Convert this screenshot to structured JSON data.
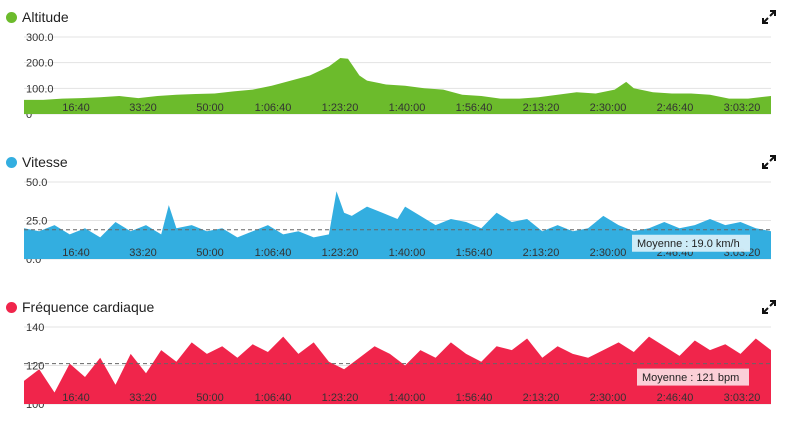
{
  "chart_data": [
    {
      "type": "area",
      "title": "Altitude",
      "color": "#6cbb2c",
      "x_ticks": [
        "16:40",
        "33:20",
        "50:00",
        "1:06:40",
        "1:23:20",
        "1:40:00",
        "1:56:40",
        "2:13:20",
        "2:30:00",
        "2:46:40",
        "3:03:20"
      ],
      "y_ticks": [
        "0",
        "100.0",
        "200.0",
        "300.0"
      ],
      "ylim": [
        0,
        300
      ],
      "xlim_minutes": [
        0,
        196
      ],
      "grid": true,
      "series": [
        {
          "x_minutes": [
            0,
            5,
            10,
            15,
            20,
            25,
            30,
            35,
            40,
            45,
            50,
            55,
            60,
            65,
            70,
            75,
            80,
            83,
            85,
            88,
            90,
            95,
            100,
            105,
            110,
            115,
            120,
            125,
            130,
            135,
            140,
            145,
            150,
            155,
            158,
            160,
            165,
            170,
            175,
            180,
            185,
            190,
            196
          ],
          "values": [
            55,
            55,
            60,
            62,
            65,
            70,
            62,
            70,
            75,
            78,
            80,
            88,
            95,
            110,
            130,
            150,
            185,
            218,
            215,
            150,
            130,
            115,
            110,
            100,
            95,
            75,
            70,
            60,
            60,
            65,
            75,
            85,
            80,
            95,
            125,
            100,
            85,
            80,
            80,
            75,
            60,
            60,
            70
          ]
        }
      ]
    },
    {
      "type": "area",
      "title": "Vitesse",
      "color": "#33aee0",
      "x_ticks": [
        "16:40",
        "33:20",
        "50:00",
        "1:06:40",
        "1:23:20",
        "1:40:00",
        "1:56:40",
        "2:13:20",
        "2:30:00",
        "2:46:40",
        "3:03:20"
      ],
      "y_ticks": [
        "0.0",
        "25.0",
        "50.0"
      ],
      "ylim": [
        0,
        50
      ],
      "xlim_minutes": [
        0,
        196
      ],
      "average": {
        "value": 19.0,
        "label": "Moyenne : 19.0 km/h"
      },
      "series": [
        {
          "x_minutes": [
            0,
            4,
            8,
            12,
            16,
            20,
            24,
            28,
            32,
            36,
            38,
            40,
            44,
            48,
            52,
            56,
            60,
            64,
            68,
            72,
            76,
            80,
            82,
            84,
            86,
            90,
            94,
            98,
            100,
            104,
            108,
            112,
            116,
            120,
            124,
            128,
            132,
            136,
            140,
            144,
            148,
            152,
            156,
            160,
            164,
            168,
            172,
            176,
            180,
            184,
            188,
            192,
            196
          ],
          "values": [
            20,
            18,
            22,
            16,
            20,
            14,
            24,
            18,
            22,
            16,
            35,
            20,
            22,
            18,
            20,
            14,
            18,
            22,
            16,
            18,
            14,
            16,
            44,
            30,
            28,
            34,
            30,
            26,
            34,
            28,
            22,
            26,
            24,
            20,
            30,
            24,
            26,
            18,
            22,
            18,
            20,
            28,
            22,
            18,
            20,
            24,
            20,
            22,
            26,
            22,
            24,
            20,
            18
          ]
        }
      ]
    },
    {
      "type": "area",
      "title": "Fréquence cardiaque",
      "color": "#f0254b",
      "x_ticks": [
        "16:40",
        "33:20",
        "50:00",
        "1:06:40",
        "1:23:20",
        "1:40:00",
        "1:56:40",
        "2:13:20",
        "2:30:00",
        "2:46:40",
        "3:03:20"
      ],
      "y_ticks": [
        "100",
        "120",
        "140"
      ],
      "ylim": [
        100,
        140
      ],
      "xlim_minutes": [
        0,
        196
      ],
      "average": {
        "value": 121,
        "label": "Moyenne : 121 bpm"
      },
      "series": [
        {
          "x_minutes": [
            0,
            4,
            8,
            12,
            16,
            20,
            24,
            28,
            32,
            36,
            40,
            44,
            48,
            52,
            56,
            60,
            64,
            68,
            72,
            76,
            80,
            84,
            88,
            92,
            96,
            100,
            104,
            108,
            112,
            116,
            120,
            124,
            128,
            132,
            136,
            140,
            144,
            148,
            152,
            156,
            160,
            164,
            168,
            172,
            176,
            180,
            184,
            188,
            192,
            196
          ],
          "values": [
            112,
            118,
            106,
            121,
            114,
            124,
            110,
            126,
            116,
            128,
            122,
            132,
            126,
            130,
            124,
            131,
            127,
            135,
            126,
            132,
            122,
            118,
            124,
            130,
            126,
            120,
            128,
            124,
            132,
            126,
            122,
            130,
            128,
            134,
            124,
            130,
            126,
            124,
            128,
            132,
            127,
            135,
            130,
            125,
            133,
            128,
            131,
            126,
            134,
            128
          ]
        }
      ]
    }
  ]
}
